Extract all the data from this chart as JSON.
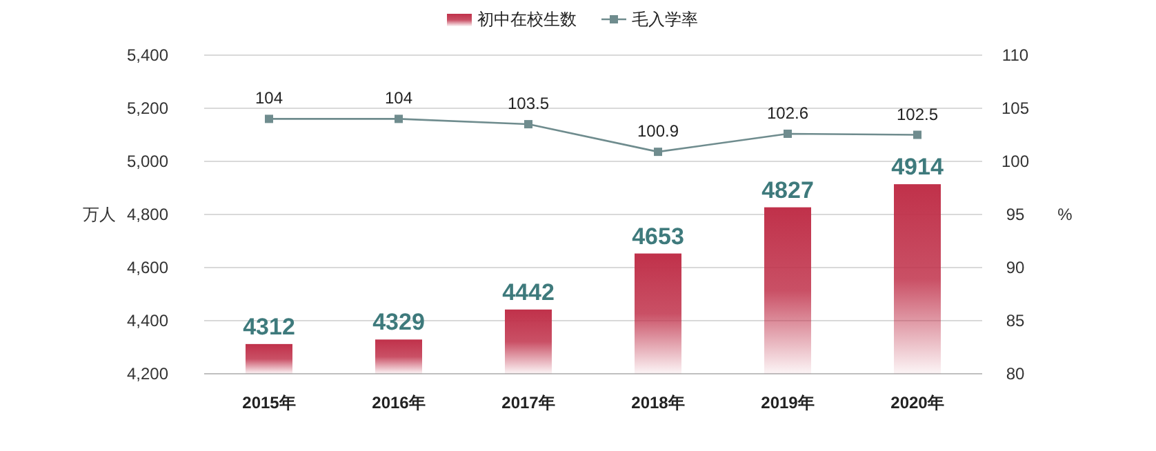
{
  "chart_data": {
    "type": "bar",
    "categories": [
      "2015年",
      "2016年",
      "2017年",
      "2018年",
      "2019年",
      "2020年"
    ],
    "series": [
      {
        "name": "初中在校生数",
        "color": "#c0314a",
        "values": [
          4312,
          4329,
          4442,
          4653,
          4827,
          4914
        ]
      },
      {
        "name": "毛入学率",
        "type": "line",
        "axis": "y2",
        "color": "#6f8c8e",
        "marker": "square",
        "values": [
          104,
          104,
          103.5,
          100.9,
          102.6,
          102.5
        ]
      }
    ],
    "ylabel": "万人",
    "y2label": "%",
    "ylim": [
      4200,
      5400
    ],
    "yticks": [
      {
        "value": 4200,
        "label": "4,200"
      },
      {
        "value": 4400,
        "label": "4,400"
      },
      {
        "value": 4600,
        "label": "4,600"
      },
      {
        "value": 4800,
        "label": "4,800"
      },
      {
        "value": 5000,
        "label": "5,000"
      },
      {
        "value": 5200,
        "label": "5,200"
      },
      {
        "value": 5400,
        "label": "5,400"
      }
    ],
    "y2lim": [
      80,
      110
    ],
    "y2ticks": [
      80,
      85,
      90,
      95,
      100,
      105,
      110
    ],
    "grid": "y",
    "legend": "top",
    "data_labels": true
  }
}
